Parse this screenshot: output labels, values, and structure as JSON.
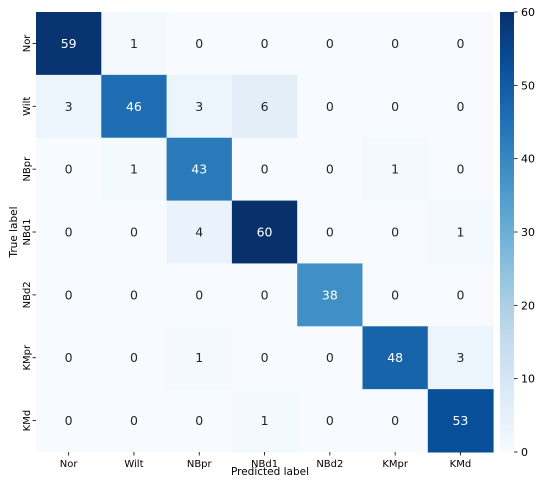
{
  "chart_data": {
    "type": "heatmap",
    "title": "",
    "xlabel": "Predicted label",
    "ylabel": "True label",
    "x_categories": [
      "Nor",
      "Wilt",
      "NBpr",
      "NBd1",
      "NBd2",
      "KMpr",
      "KMd"
    ],
    "y_categories": [
      "Nor",
      "Wilt",
      "NBpr",
      "NBd1",
      "NBd2",
      "KMpr",
      "KMd"
    ],
    "values": [
      [
        59,
        1,
        0,
        0,
        0,
        0,
        0
      ],
      [
        3,
        46,
        3,
        6,
        0,
        0,
        0
      ],
      [
        0,
        1,
        43,
        0,
        0,
        1,
        0
      ],
      [
        0,
        0,
        4,
        60,
        0,
        0,
        1
      ],
      [
        0,
        0,
        0,
        0,
        38,
        0,
        0
      ],
      [
        0,
        0,
        1,
        0,
        0,
        48,
        3
      ],
      [
        0,
        0,
        0,
        1,
        0,
        0,
        53
      ]
    ],
    "colorbar": {
      "min": 0,
      "max": 60,
      "ticks": [
        0,
        10,
        20,
        30,
        40,
        50,
        60
      ],
      "colormap": "Blues",
      "low_color": "#f7fbff",
      "high_color": "#08306b"
    },
    "grid": false
  }
}
